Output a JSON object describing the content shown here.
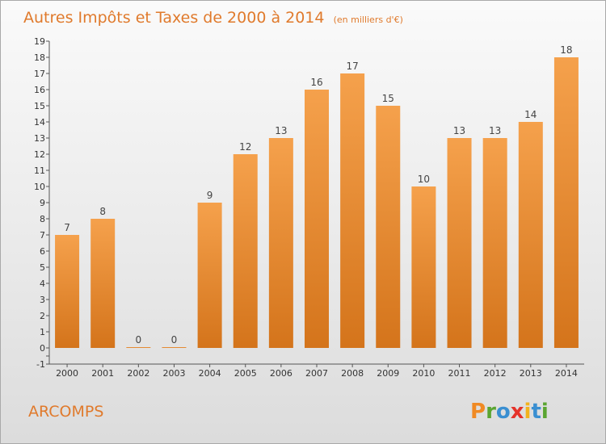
{
  "chart_data": {
    "type": "bar",
    "title": "Autres Impôts et Taxes de 2000 à 2014",
    "subtitle": "(en milliers d'€)",
    "categories": [
      "2000",
      "2001",
      "2002",
      "2003",
      "2004",
      "2005",
      "2006",
      "2007",
      "2008",
      "2009",
      "2010",
      "2011",
      "2012",
      "2013",
      "2014"
    ],
    "values": [
      7,
      8,
      0,
      0,
      9,
      12,
      13,
      16,
      17,
      15,
      10,
      13,
      13,
      14,
      18
    ],
    "xlabel": "",
    "ylabel": "",
    "ylim": [
      -1,
      19
    ],
    "yticks": [
      "-1",
      "",
      "0",
      "1",
      "2",
      "3",
      "4",
      "5",
      "6",
      "7",
      "8",
      "9",
      "10",
      "11",
      "12",
      "13",
      "14",
      "15",
      "16",
      "17",
      "18",
      "19"
    ],
    "grid": false,
    "legend": "none",
    "bar_color": "#f5a14c",
    "bar_color_dark": "#d4741b"
  },
  "footer": {
    "commune": "ARCOMPS",
    "logo": [
      "P",
      "r",
      "o",
      "x",
      "i",
      "t",
      "i"
    ],
    "logo_colors": [
      "#f08a24",
      "#5aa531",
      "#3a8fd1",
      "#e5332a",
      "#f2b21d",
      "#3a8fd1",
      "#5aa531"
    ]
  }
}
